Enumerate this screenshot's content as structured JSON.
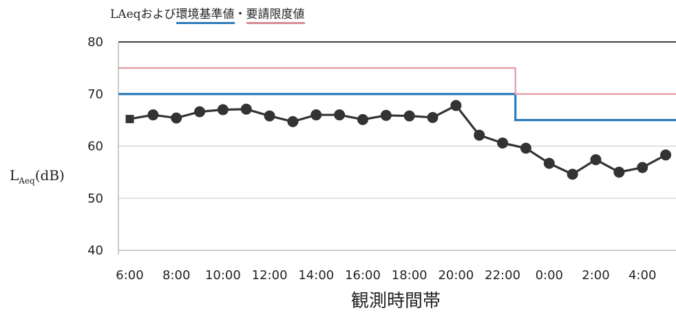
{
  "legend": {
    "prefix": "LAeqおよび",
    "env_label": "環境基準値",
    "sep": "・",
    "req_label": "要請限度値"
  },
  "chart_data": {
    "type": "line",
    "xlabel": "観測時間帯",
    "ylabel_main": "L",
    "ylabel_sub": "Aeq",
    "ylabel_unit": "(dB)",
    "ylim": [
      40,
      80
    ],
    "yticks": [
      40,
      50,
      60,
      70,
      80
    ],
    "x_tick_labels": [
      "6:00",
      "8:00",
      "10:00",
      "12:00",
      "14:00",
      "16:00",
      "18:00",
      "20:00",
      "22:00",
      "0:00",
      "2:00",
      "4:00"
    ],
    "hours": [
      "6:00",
      "7:00",
      "8:00",
      "9:00",
      "10:00",
      "11:00",
      "12:00",
      "13:00",
      "14:00",
      "15:00",
      "16:00",
      "17:00",
      "18:00",
      "19:00",
      "20:00",
      "21:00",
      "22:00",
      "23:00",
      "0:00",
      "1:00",
      "2:00",
      "3:00",
      "4:00",
      "5:00"
    ],
    "grid": true,
    "series": [
      {
        "values": [
          65.2,
          66.0,
          65.4,
          66.6,
          67.0,
          67.1,
          65.8,
          64.7,
          66.0,
          66.0,
          65.1,
          65.9,
          65.8,
          65.5,
          67.8,
          62.1,
          60.6,
          59.6,
          56.7,
          54.6,
          57.4,
          55.0,
          55.9,
          58.3
        ],
        "color": "#333333"
      }
    ],
    "standards": [
      {
        "label": "環境基準値",
        "color": "#2b7bba",
        "day_value": 70,
        "night_value": 65,
        "switch": "22:00"
      },
      {
        "label": "要請限度値",
        "color": "#e5a2a9",
        "day_value": 75,
        "night_value": 70,
        "switch": "22:00"
      }
    ],
    "colors": {
      "axis": "#999999",
      "grid": "#c8c8c8",
      "top_line": "#000000"
    }
  }
}
